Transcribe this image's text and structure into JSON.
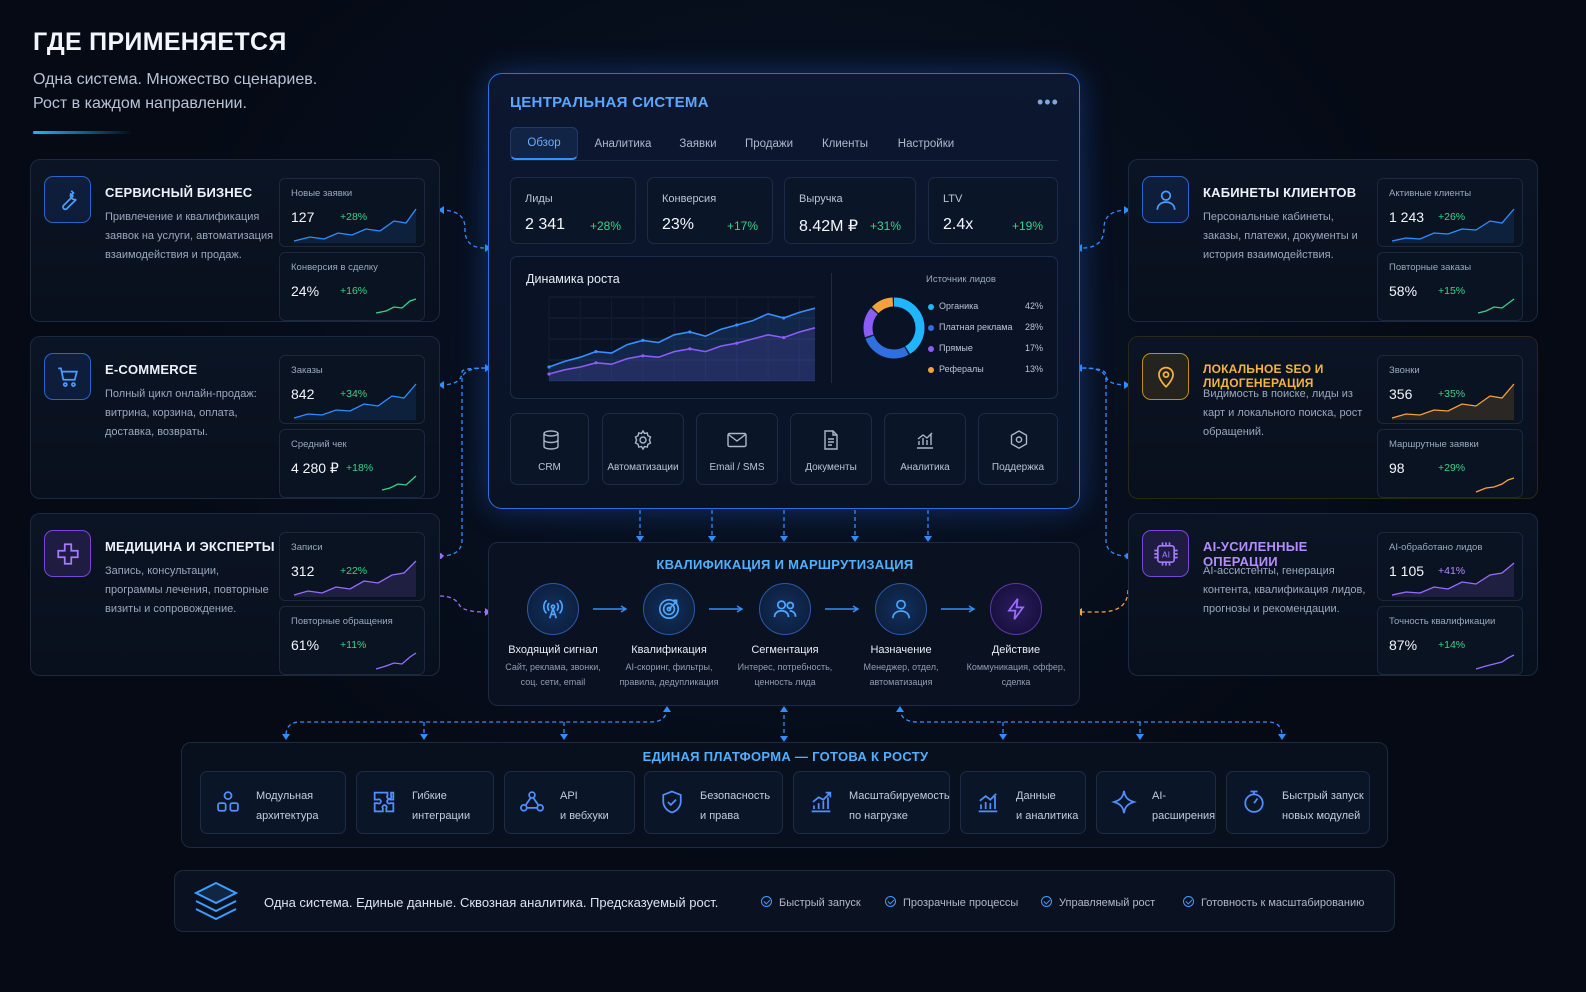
{
  "header": {
    "title": "ГДЕ ПРИМЕНЯЕТСЯ",
    "subtitle_line1": "Одна система. Множество сценариев.",
    "subtitle_line2": "Рост в каждом направлении."
  },
  "colors": {
    "accent": "#2f6fe0",
    "accent_cyan": "#1fb6ff",
    "positive": "#34d58a",
    "orange": "#f6b43c",
    "purple": "#9b6cff",
    "background": "#050a14"
  },
  "left_panels": [
    {
      "title": "СЕРВИСНЫЙ БИЗНЕС",
      "icon": "wrench-icon",
      "description": "Привлечение и квалификация заявок на услуги, автоматизация взаимодействия и продаж.",
      "metrics": [
        {
          "label": "Новые заявки",
          "value": "127",
          "delta": "+28%"
        },
        {
          "label": "Конверсия в сделку",
          "value": "24%",
          "delta": "+16%"
        }
      ]
    },
    {
      "title": "E-COMMERCE",
      "icon": "cart-icon",
      "description": "Полный цикл онлайн-продаж: витрина, корзина, оплата, доставка, возвраты.",
      "metrics": [
        {
          "label": "Заказы",
          "value": "842",
          "delta": "+34%"
        },
        {
          "label": "Средний чек",
          "value": "4 280 ₽",
          "delta": "+18%"
        }
      ]
    },
    {
      "title": "МЕДИЦИНА И ЭКСПЕРТЫ",
      "icon": "medical-cross-icon",
      "description": "Запись, консультации, программы лечения, повторные визиты и сопровождение.",
      "metrics": [
        {
          "label": "Записи",
          "value": "312",
          "delta": "+22%"
        },
        {
          "label": "Повторные обращения",
          "value": "61%",
          "delta": "+11%"
        }
      ]
    }
  ],
  "right_panels": [
    {
      "title": "КАБИНЕТЫ КЛИЕНТОВ",
      "icon": "user-icon",
      "description": "Персональные кабинеты, заказы, платежи, документы и история взаимодействия.",
      "metrics": [
        {
          "label": "Активные клиенты",
          "value": "1 243",
          "delta": "+26%"
        },
        {
          "label": "Повторные заказы",
          "value": "58%",
          "delta": "+15%"
        }
      ]
    },
    {
      "title": "ЛОКАЛЬНОЕ SEO И ЛИДОГЕНЕРАЦИЯ",
      "icon": "map-pin-icon",
      "description": "Видимость в поиске, лиды из карт и локального поиска, рост обращений.",
      "metrics": [
        {
          "label": "Звонки",
          "value": "356",
          "delta": "+35%"
        },
        {
          "label": "Маршрутные заявки",
          "value": "98",
          "delta": "+29%"
        }
      ]
    },
    {
      "title": "AI-УСИЛЕННЫЕ ОПЕРАЦИИ",
      "icon": "ai-chip-icon",
      "description": "AI-ассистенты, генерация контента, квалификация лидов, прогнозы и рекомендации.",
      "metrics": [
        {
          "label": "AI-обработано лидов",
          "value": "1 105",
          "delta": "+41%"
        },
        {
          "label": "Точность квалификации",
          "value": "87%",
          "delta": "+14%"
        }
      ]
    }
  ],
  "central": {
    "title": "ЦЕНТРАЛЬНАЯ СИСТЕМА",
    "menu": "•••",
    "tabs": [
      "Обзор",
      "Аналитика",
      "Заявки",
      "Продажи",
      "Клиенты",
      "Настройки"
    ],
    "kpis": [
      {
        "label": "Лиды",
        "value": "2 341",
        "delta": "+28%"
      },
      {
        "label": "Конверсия",
        "value": "23%",
        "delta": "+17%"
      },
      {
        "label": "Выручка",
        "value": "8.42M ₽",
        "delta": "+31%"
      },
      {
        "label": "LTV",
        "value": "2.4x",
        "delta": "+19%"
      }
    ],
    "growth_title": "Динамика роста",
    "sources_title": "Источник лидов",
    "tiles": [
      "CRM",
      "Автоматизации",
      "Email / SMS",
      "Документы",
      "Аналитика",
      "Поддержка"
    ]
  },
  "chart_data": [
    {
      "type": "line",
      "title": "Динамика роста",
      "series": [
        {
          "values": [
            20,
            28,
            34,
            42,
            40,
            52,
            58,
            55,
            66,
            70,
            64,
            74,
            80,
            86,
            96,
            90,
            98,
            104
          ]
        },
        {
          "values": [
            10,
            16,
            20,
            26,
            24,
            32,
            36,
            34,
            42,
            46,
            42,
            50,
            54,
            60,
            66,
            62,
            70,
            76
          ]
        }
      ],
      "ylim": [
        0,
        120
      ]
    },
    {
      "type": "pie",
      "title": "Источник лидов",
      "labels": [
        "Органика",
        "Платная реклама",
        "Прямые",
        "Рефералы"
      ],
      "values": [
        42,
        28,
        17,
        13
      ],
      "value_labels": [
        "42%",
        "28%",
        "17%",
        "13%"
      ],
      "colors": [
        "#1fb6ff",
        "#2f6fe0",
        "#8b5cf6",
        "#f6a23c"
      ]
    }
  ],
  "routing": {
    "title": "КВАЛИФИКАЦИЯ И МАРШРУТИЗАЦИЯ",
    "steps": [
      {
        "title": "Входящий сигнал",
        "desc1": "Сайт, реклама, звонки,",
        "desc2": "соц. сети, email",
        "icon": "signal-antenna-icon"
      },
      {
        "title": "Квалификация",
        "desc1": "AI-скоринг, фильтры,",
        "desc2": "правила, дедупликация",
        "icon": "target-icon"
      },
      {
        "title": "Сегментация",
        "desc1": "Интерес, потребность,",
        "desc2": "ценность лида",
        "icon": "users-icon"
      },
      {
        "title": "Назначение",
        "desc1": "Менеджер, отдел,",
        "desc2": "автоматизация",
        "icon": "person-icon"
      },
      {
        "title": "Действие",
        "desc1": "Коммуникация, оффер,",
        "desc2": "сделка",
        "icon": "lightning-icon"
      }
    ]
  },
  "platform": {
    "title": "ЕДИНАЯ ПЛАТФОРМА — ГОТОВА К РОСТУ",
    "features": [
      {
        "line1": "Модульная",
        "line2": "архитектура",
        "icon": "modules-icon"
      },
      {
        "line1": "Гибкие",
        "line2": "интеграции",
        "icon": "puzzle-icon"
      },
      {
        "line1": "API",
        "line2": "и вебхуки",
        "icon": "api-icon"
      },
      {
        "line1": "Безопасность",
        "line2": "и права",
        "icon": "shield-check-icon"
      },
      {
        "line1": "Масштабируемость",
        "line2": "по нагрузке",
        "icon": "scale-chart-icon"
      },
      {
        "line1": "Данные",
        "line2": "и аналитика",
        "icon": "bar-chart-icon"
      },
      {
        "line1": "AI-",
        "line2": "расширения",
        "icon": "sparkle-icon"
      },
      {
        "line1": "Быстрый запуск",
        "line2": "новых модулей",
        "icon": "rocket-gauge-icon"
      }
    ]
  },
  "footer": {
    "text": "Одна система. Единые данные. Сквозная аналитика. Предсказуемый рост.",
    "checks": [
      "Быстрый запуск",
      "Прозрачные процессы",
      "Управляемый рост",
      "Готовность к масштабированию"
    ],
    "icon": "layers-icon"
  }
}
